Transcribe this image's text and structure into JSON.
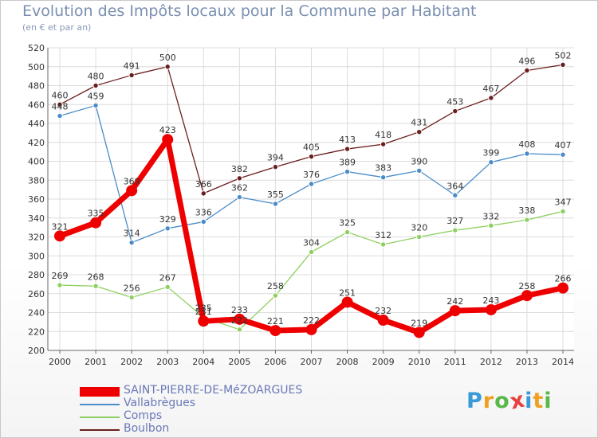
{
  "header": {
    "title": "Evolution des Impôts locaux pour la Commune par Habitant",
    "subtitle": "(en € et par an)"
  },
  "chart_data": {
    "type": "line",
    "title": "Evolution des Impôts locaux pour la Commune par Habitant",
    "subtitle": "(en € et par an)",
    "xlabel": "",
    "ylabel": "",
    "x": [
      "2000",
      "2001",
      "2002",
      "2003",
      "2004",
      "2005",
      "2006",
      "2007",
      "2008",
      "2009",
      "2010",
      "2011",
      "2012",
      "2013",
      "2014"
    ],
    "ylim": [
      200,
      520
    ],
    "yticks": [
      200,
      220,
      240,
      260,
      280,
      300,
      320,
      340,
      360,
      380,
      400,
      420,
      440,
      460,
      480,
      500,
      520
    ],
    "grid": true,
    "legend_position": "bottom-left",
    "series": [
      {
        "name": "Boulbon",
        "color": "#6b1e1e",
        "values": [
          460,
          480,
          491,
          500,
          366,
          382,
          394,
          405,
          413,
          418,
          431,
          453,
          467,
          496,
          502
        ]
      },
      {
        "name": "Vallabrègues",
        "color": "#4a8cc8",
        "values": [
          448,
          459,
          314,
          329,
          336,
          362,
          355,
          376,
          389,
          383,
          390,
          364,
          399,
          408,
          407
        ]
      },
      {
        "name": "Comps",
        "color": "#8ed060",
        "values": [
          269,
          268,
          256,
          267,
          235,
          222,
          258,
          304,
          325,
          312,
          320,
          327,
          332,
          338,
          347
        ]
      },
      {
        "name": "SAINT-PIERRE-DE-MéZOARGUES",
        "color": "#ee0000",
        "values": [
          321,
          335,
          369,
          423,
          231,
          233,
          221,
          222,
          251,
          232,
          219,
          242,
          243,
          258,
          266
        ]
      }
    ],
    "data_labels": {
      "SAINT-PIERRE-DE-MéZOARGUES": [
        "321",
        "335",
        "369",
        "423",
        "231",
        "233",
        "221",
        "222",
        "251",
        "232",
        "219",
        "242",
        "243",
        "258",
        "266"
      ],
      "Vallabrègues": [
        "448",
        "459",
        "314",
        "329",
        "336",
        "362",
        "355",
        "376",
        "389",
        "383",
        "390",
        "364",
        "399",
        "408",
        "407"
      ],
      "Comps": [
        "269",
        "268",
        "256",
        "267",
        "235",
        "222",
        "258",
        "304",
        "325",
        "312",
        "320",
        "327",
        "332",
        "338",
        "347"
      ],
      "Boulbon": [
        "460",
        "480",
        "491",
        "500",
        "366",
        "382",
        "394",
        "405",
        "413",
        "418",
        "431",
        "453",
        "467",
        "496",
        "502"
      ]
    }
  },
  "legend": {
    "items": [
      {
        "label": "SAINT-PIERRE-DE-MéZOARGUES",
        "color": "#ee0000"
      },
      {
        "label": "Vallabrègues",
        "color": "#4a8cc8"
      },
      {
        "label": "Comps",
        "color": "#8ed060"
      },
      {
        "label": "Boulbon",
        "color": "#6b1e1e"
      }
    ]
  },
  "logo": {
    "letters": [
      "P",
      "r",
      "o",
      "x",
      "i",
      "t",
      "i"
    ],
    "colors": [
      "#3a9ad8",
      "#f0a020",
      "#58b848",
      "#e84040",
      "#3a9ad8",
      "#f0a020",
      "#58b848"
    ]
  }
}
